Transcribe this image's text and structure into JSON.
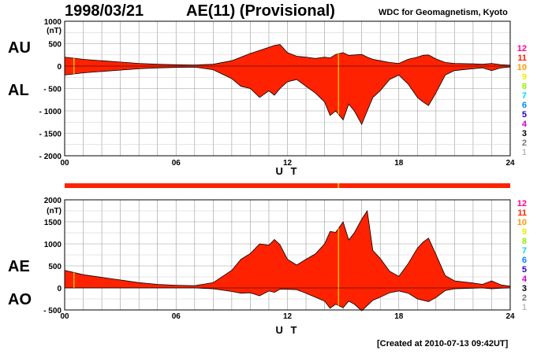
{
  "header": {
    "date": "1998/03/21",
    "title": "AE(11) (Provisional)",
    "org": "WDC for Geomagnetism, Kyoto"
  },
  "footer": {
    "created": "[Created at 2010-07-13 09:42UT]"
  },
  "colors": {
    "fill": "#ff2200",
    "edge": "#000000",
    "marker": "#ffbb00",
    "grid": "#999999"
  },
  "chart_data": [
    {
      "type": "area",
      "panel": "AU/AL",
      "labels": {
        "upper": "AU",
        "lower": "AL"
      },
      "unit": "(nT)",
      "ylim": [
        -2000,
        1000
      ],
      "yticks": [
        "1000",
        "500",
        "0",
        "- 500",
        "- 1000",
        "- 1500",
        "- 2000"
      ],
      "ytick_values": [
        1000,
        500,
        0,
        -500,
        -1000,
        -1500,
        -2000
      ],
      "xlim": [
        0,
        24
      ],
      "xticks": [
        "00",
        "06",
        "12",
        "18",
        "24"
      ],
      "xtick_values": [
        0,
        6,
        12,
        18,
        24
      ],
      "xlabel": "U T",
      "grid": true,
      "marker_hours": [
        0.5,
        14.75
      ],
      "series": [
        {
          "name": "AU",
          "x": [
            0,
            1,
            2,
            3,
            4,
            5,
            6,
            7,
            8,
            9,
            9.5,
            10,
            10.5,
            11,
            11.3,
            11.6,
            12,
            12.5,
            13,
            13.5,
            14,
            14.3,
            14.6,
            15,
            15.3,
            15.6,
            16,
            16.3,
            16.6,
            17,
            17.5,
            18,
            18.5,
            19,
            19.3,
            19.6,
            20,
            20.5,
            21,
            22,
            22.5,
            23,
            23.5,
            24
          ],
          "values": [
            200,
            150,
            120,
            90,
            60,
            40,
            30,
            25,
            40,
            120,
            200,
            280,
            350,
            420,
            460,
            480,
            300,
            220,
            200,
            170,
            200,
            180,
            260,
            300,
            240,
            250,
            260,
            200,
            150,
            120,
            80,
            60,
            150,
            200,
            240,
            250,
            160,
            80,
            60,
            50,
            40,
            60,
            30,
            20
          ]
        },
        {
          "name": "AL",
          "x": [
            0,
            1,
            2,
            3,
            4,
            5,
            6,
            7,
            8,
            9,
            9.5,
            10,
            10.5,
            11,
            11.3,
            11.6,
            12,
            12.5,
            13,
            13.5,
            14,
            14.3,
            14.6,
            15,
            15.3,
            15.6,
            16,
            16.3,
            16.6,
            17,
            17.5,
            18,
            18.5,
            19,
            19.3,
            19.6,
            20,
            20.5,
            21,
            22,
            22.5,
            23,
            23.5,
            24
          ],
          "values": [
            -200,
            -150,
            -120,
            -90,
            -60,
            -40,
            -30,
            -25,
            -80,
            -280,
            -450,
            -500,
            -700,
            -550,
            -650,
            -500,
            -350,
            -300,
            -450,
            -600,
            -800,
            -1100,
            -1000,
            -1200,
            -850,
            -1000,
            -1300,
            -1000,
            -700,
            -550,
            -300,
            -200,
            -400,
            -700,
            -800,
            -880,
            -600,
            -200,
            -100,
            -60,
            -40,
            -100,
            -40,
            -20
          ]
        }
      ],
      "legend": [
        {
          "label": "12",
          "color": "#ff0099"
        },
        {
          "label": "11",
          "color": "#ff2200"
        },
        {
          "label": "10",
          "color": "#ff9900"
        },
        {
          "label": "9",
          "color": "#eeee00"
        },
        {
          "label": "8",
          "color": "#99ee00"
        },
        {
          "label": "7",
          "color": "#00dddd"
        },
        {
          "label": "6",
          "color": "#0088ff"
        },
        {
          "label": "5",
          "color": "#2200cc"
        },
        {
          "label": "4",
          "color": "#cc00cc"
        },
        {
          "label": "3",
          "color": "#000000"
        },
        {
          "label": "2",
          "color": "#777777"
        },
        {
          "label": "1",
          "color": "#bbbbbb"
        }
      ]
    },
    {
      "type": "area",
      "panel": "AE/AO",
      "labels": {
        "upper": "AE",
        "lower": "AO"
      },
      "unit": "(nT)",
      "ylim": [
        -500,
        2000
      ],
      "yticks": [
        "2000",
        "1500",
        "1000",
        "500",
        "0",
        "- 500"
      ],
      "ytick_values": [
        2000,
        1500,
        1000,
        500,
        0,
        -500
      ],
      "xlim": [
        0,
        24
      ],
      "xticks": [
        "00",
        "06",
        "12",
        "18",
        "24"
      ],
      "xtick_values": [
        0,
        6,
        12,
        18,
        24
      ],
      "xlabel": "U T",
      "grid": true,
      "marker_hours": [
        0.5,
        14.75
      ],
      "series": [
        {
          "name": "AE",
          "x": [
            0,
            1,
            2,
            3,
            4,
            5,
            6,
            7,
            8,
            9,
            9.5,
            10,
            10.5,
            11,
            11.3,
            11.6,
            12,
            12.5,
            13,
            13.5,
            14,
            14.3,
            14.6,
            15,
            15.3,
            15.6,
            16,
            16.3,
            16.6,
            17,
            17.5,
            18,
            18.5,
            19,
            19.3,
            19.6,
            20,
            20.5,
            21,
            22,
            22.5,
            23,
            23.5,
            24
          ],
          "values": [
            400,
            300,
            240,
            180,
            120,
            80,
            60,
            50,
            120,
            400,
            650,
            780,
            1000,
            970,
            1100,
            980,
            650,
            520,
            650,
            770,
            1000,
            1280,
            1260,
            1500,
            1090,
            1250,
            1560,
            1750,
            850,
            670,
            380,
            260,
            550,
            900,
            1040,
            1130,
            760,
            280,
            160,
            110,
            80,
            160,
            70,
            40
          ]
        },
        {
          "name": "AO",
          "x": [
            0,
            1,
            2,
            3,
            4,
            5,
            6,
            7,
            8,
            9,
            9.5,
            10,
            10.5,
            11,
            11.3,
            11.6,
            12,
            12.5,
            13,
            13.5,
            14,
            14.3,
            14.6,
            15,
            15.3,
            15.6,
            16,
            16.3,
            16.6,
            17,
            17.5,
            18,
            18.5,
            19,
            19.3,
            19.6,
            20,
            20.5,
            21,
            22,
            22.5,
            23,
            23.5,
            24
          ],
          "values": [
            0,
            0,
            0,
            0,
            0,
            0,
            0,
            0,
            -20,
            -80,
            -120,
            -110,
            -180,
            -70,
            -100,
            -30,
            -30,
            -40,
            -120,
            -210,
            -300,
            -460,
            -370,
            -450,
            -300,
            -370,
            -520,
            -400,
            -280,
            -210,
            -110,
            -70,
            -120,
            -250,
            -280,
            -310,
            -220,
            -60,
            -20,
            -5,
            0,
            -20,
            -5,
            0
          ]
        }
      ],
      "legend": [
        {
          "label": "12",
          "color": "#ff0099"
        },
        {
          "label": "11",
          "color": "#ff2200"
        },
        {
          "label": "10",
          "color": "#ff9900"
        },
        {
          "label": "9",
          "color": "#eeee00"
        },
        {
          "label": "8",
          "color": "#99ee00"
        },
        {
          "label": "7",
          "color": "#00dddd"
        },
        {
          "label": "6",
          "color": "#0088ff"
        },
        {
          "label": "5",
          "color": "#2200cc"
        },
        {
          "label": "4",
          "color": "#cc00cc"
        },
        {
          "label": "3",
          "color": "#000000"
        },
        {
          "label": "2",
          "color": "#777777"
        },
        {
          "label": "1",
          "color": "#bbbbbb"
        }
      ]
    }
  ]
}
